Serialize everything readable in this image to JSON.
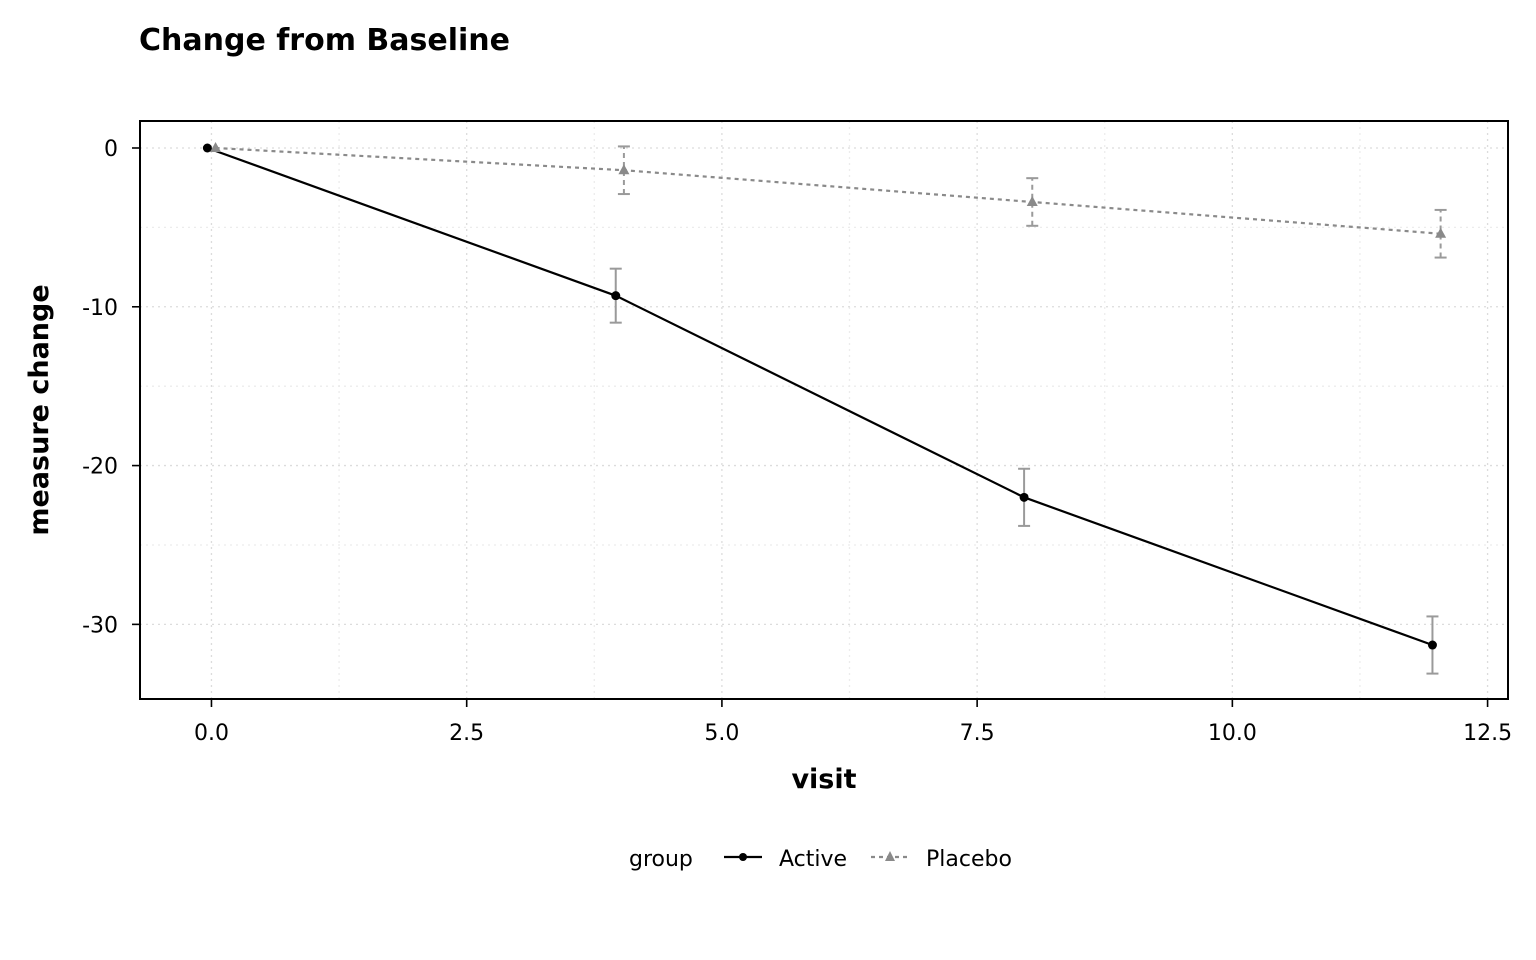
{
  "chart_data": {
    "type": "line",
    "title": "Change from Baseline",
    "xlabel": "visit",
    "ylabel": "measure change",
    "xlim": [
      -0.7,
      12.7
    ],
    "ylim": [
      -34.7,
      1.7
    ],
    "xticks": [
      0.0,
      2.5,
      5.0,
      7.5,
      10.0,
      12.5
    ],
    "xtick_labels": [
      "0.0",
      "2.5",
      "5.0",
      "7.5",
      "10.0",
      "12.5"
    ],
    "yticks": [
      0,
      -10,
      -20,
      -30
    ],
    "ytick_labels": [
      "0",
      "-10",
      "-20",
      "-30"
    ],
    "grid": true,
    "legend_title": "group",
    "legend_position": "bottom",
    "series": [
      {
        "name": "Active",
        "color": "#000000",
        "line_style": "solid",
        "marker": "circle",
        "x": [
          -0.04,
          3.96,
          7.96,
          11.96
        ],
        "y": [
          0,
          -9.3,
          -22.0,
          -31.3
        ],
        "err_low": [
          0,
          -11.0,
          -23.8,
          -33.1
        ],
        "err_high": [
          0,
          -7.6,
          -20.2,
          -29.5
        ]
      },
      {
        "name": "Placebo",
        "color": "#8a8a8a",
        "line_style": "dashed",
        "marker": "triangle",
        "x": [
          0.04,
          4.04,
          8.04,
          12.04
        ],
        "y": [
          0,
          -1.4,
          -3.4,
          -5.4
        ],
        "err_low": [
          0,
          -2.9,
          -4.9,
          -6.9
        ],
        "err_high": [
          0,
          0.1,
          -1.9,
          -3.9
        ]
      }
    ]
  }
}
